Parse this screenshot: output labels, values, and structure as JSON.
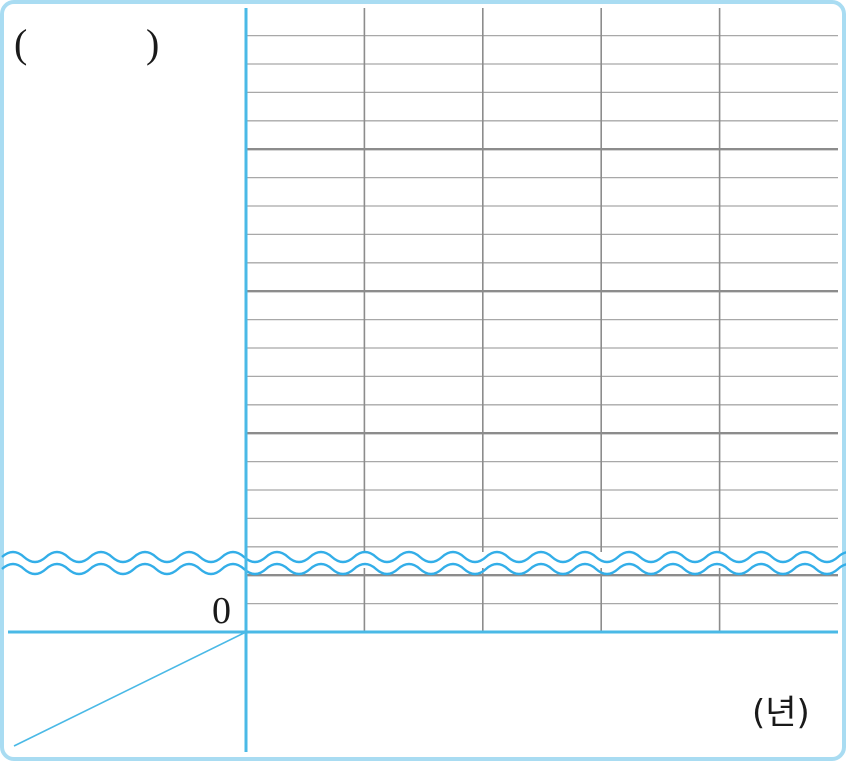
{
  "colors": {
    "frame": "#a9dcf2",
    "axis": "#4ab9e6",
    "grid_major": "#8c8c8c",
    "grid_minor": "#a8a8a8",
    "break_wave": "#33aee8",
    "text": "#1a1a1a"
  },
  "labels": {
    "y_unit_open": "(",
    "y_unit_close": ")",
    "origin": "0",
    "x_unit": "(년)"
  },
  "chart_data": {
    "type": "line",
    "categories": [
      "",
      "",
      "",
      "",
      ""
    ],
    "series": [],
    "xlabel": "(년)",
    "ylabel": "(        )",
    "origin_label": "0",
    "grid": true,
    "minor_gridlines_per_major": 5,
    "major_gridlines": 4,
    "axis_break": true,
    "corner_diagonal": true
  }
}
